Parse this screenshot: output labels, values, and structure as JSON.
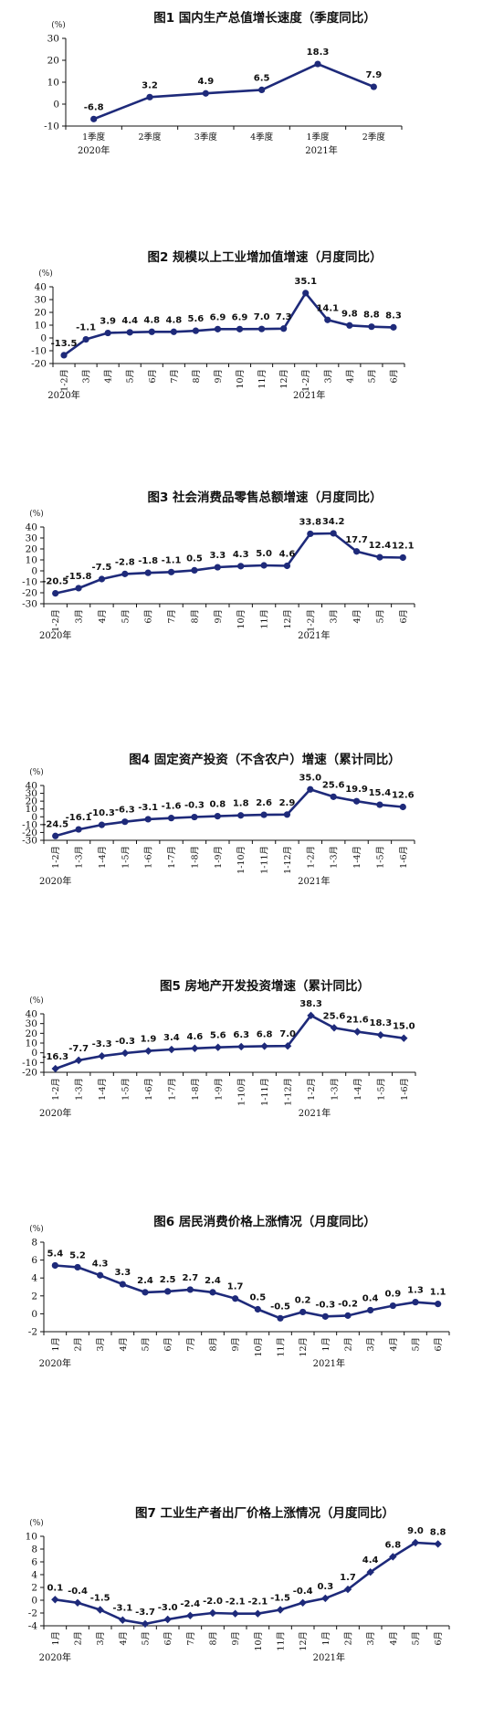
{
  "colors": {
    "series": "#1e2a7a",
    "axis": "#111111",
    "text": "#111111"
  },
  "chart_data": [
    {
      "type": "line",
      "title": "图1 国内生产总值增长速度（季度同比）",
      "unit": "(%)",
      "categories": [
        "1季度",
        "2季度",
        "3季度",
        "4季度",
        "1季度",
        "2季度"
      ],
      "year_labels": [
        "2020年",
        "2021年"
      ],
      "values": [
        -6.8,
        3.2,
        4.9,
        6.5,
        18.3,
        7.9
      ],
      "data_labels": [
        "-6.8",
        "3.2",
        "4.9",
        "6.5",
        "18.3",
        "7.9"
      ],
      "yticks": [
        "30",
        "20",
        "10",
        "0",
        "-10"
      ],
      "ylim": [
        -10,
        30
      ],
      "marker": "circle",
      "xlabel_style": "horizontal",
      "grid": false
    },
    {
      "type": "line",
      "title": "图2 规模以上工业增加值增速（月度同比）",
      "unit": "(%)",
      "categories": [
        "1-2月",
        "3月",
        "4月",
        "5月",
        "6月",
        "7月",
        "8月",
        "9月",
        "10月",
        "11月",
        "12月",
        "1-2月",
        "3月",
        "4月",
        "5月",
        "6月"
      ],
      "year_labels": [
        "2020年",
        "2021年"
      ],
      "values": [
        -13.5,
        -1.1,
        3.9,
        4.4,
        4.8,
        4.8,
        5.6,
        6.9,
        6.9,
        7.0,
        7.3,
        35.1,
        14.1,
        9.8,
        8.8,
        8.3
      ],
      "data_labels": [
        "-13.5",
        "-1.1",
        "3.9",
        "4.4",
        "4.8",
        "4.8",
        "5.6",
        "6.9",
        "6.9",
        "7.0",
        "7.3",
        "35.1",
        "14.1",
        "9.8",
        "8.8",
        "8.3"
      ],
      "yticks": [
        "40",
        "30",
        "20",
        "10",
        "0",
        "-10",
        "-20"
      ],
      "ylim": [
        -20,
        40
      ],
      "marker": "circle",
      "xlabel_style": "vertical",
      "grid": false
    },
    {
      "type": "line",
      "title": "图3 社会消费品零售总额增速（月度同比）",
      "unit": "(%)",
      "categories": [
        "1-2月",
        "3月",
        "4月",
        "5月",
        "6月",
        "7月",
        "8月",
        "9月",
        "10月",
        "11月",
        "12月",
        "1-2月",
        "3月",
        "4月",
        "5月",
        "6月"
      ],
      "year_labels": [
        "2020年",
        "2021年"
      ],
      "values": [
        -20.5,
        -15.8,
        -7.5,
        -2.8,
        -1.8,
        -1.1,
        0.5,
        3.3,
        4.3,
        5.0,
        4.6,
        33.8,
        34.2,
        17.7,
        12.4,
        12.1
      ],
      "data_labels": [
        "-20.5",
        "-15.8",
        "-7.5",
        "-2.8",
        "-1.8",
        "-1.1",
        "0.5",
        "3.3",
        "4.3",
        "5.0",
        "4.6",
        "33.8",
        "34.2",
        "17.7",
        "12.4",
        "12.1"
      ],
      "yticks": [
        "40",
        "30",
        "20",
        "10",
        "0",
        "-10",
        "-20",
        "-30"
      ],
      "ylim": [
        -30,
        40
      ],
      "marker": "circle",
      "xlabel_style": "vertical",
      "grid": false
    },
    {
      "type": "line",
      "title": "图4 固定资产投资（不含农户）增速（累计同比）",
      "unit": "(%)",
      "categories": [
        "1-2月",
        "1-3月",
        "1-4月",
        "1-5月",
        "1-6月",
        "1-7月",
        "1-8月",
        "1-9月",
        "1-10月",
        "1-11月",
        "1-12月",
        "1-2月",
        "1-3月",
        "1-4月",
        "1-5月",
        "1-6月"
      ],
      "year_labels": [
        "2020年",
        "2021年"
      ],
      "values": [
        -24.5,
        -16.1,
        -10.3,
        -6.3,
        -3.1,
        -1.6,
        -0.3,
        0.8,
        1.8,
        2.6,
        2.9,
        35.0,
        25.6,
        19.9,
        15.4,
        12.6
      ],
      "data_labels": [
        "-24.5",
        "-16.1",
        "-10.3",
        "-6.3",
        "-3.1",
        "-1.6",
        "-0.3",
        "0.8",
        "1.8",
        "2.6",
        "2.9",
        "35.0",
        "25.6",
        "19.9",
        "15.4",
        "12.6"
      ],
      "yticks": [
        "40",
        "30",
        "20",
        "10",
        "0",
        "-10",
        "-20",
        "-30"
      ],
      "ylim": [
        -30,
        40
      ],
      "marker": "circle",
      "xlabel_style": "vertical",
      "grid": false
    },
    {
      "type": "line",
      "title": "图5 房地产开发投资增速（累计同比）",
      "unit": "(%)",
      "categories": [
        "1-2月",
        "1-3月",
        "1-4月",
        "1-5月",
        "1-6月",
        "1-7月",
        "1-8月",
        "1-9月",
        "1-10月",
        "1-11月",
        "1-12月",
        "1-2月",
        "1-3月",
        "1-4月",
        "1-5月",
        "1-6月"
      ],
      "year_labels": [
        "2020年",
        "2021年"
      ],
      "values": [
        -16.3,
        -7.7,
        -3.3,
        -0.3,
        1.9,
        3.4,
        4.6,
        5.6,
        6.3,
        6.8,
        7.0,
        38.3,
        25.6,
        21.6,
        18.3,
        15.0
      ],
      "data_labels": [
        "-16.3",
        "-7.7",
        "-3.3",
        "-0.3",
        "1.9",
        "3.4",
        "4.6",
        "5.6",
        "6.3",
        "6.8",
        "7.0",
        "38.3",
        "25.6",
        "21.6",
        "18.3",
        "15.0"
      ],
      "yticks": [
        "40",
        "30",
        "20",
        "10",
        "0",
        "-10",
        "-20"
      ],
      "ylim": [
        -20,
        40
      ],
      "marker": "diamond",
      "xlabel_style": "vertical",
      "grid": false
    },
    {
      "type": "line",
      "title": "图6 居民消费价格上涨情况（月度同比）",
      "unit": "(%)",
      "categories": [
        "1月",
        "2月",
        "3月",
        "4月",
        "5月",
        "6月",
        "7月",
        "8月",
        "9月",
        "10月",
        "11月",
        "12月",
        "1月",
        "2月",
        "3月",
        "4月",
        "5月",
        "6月"
      ],
      "year_labels": [
        "2020年",
        "2021年"
      ],
      "values": [
        5.4,
        5.2,
        4.3,
        3.3,
        2.4,
        2.5,
        2.7,
        2.4,
        1.7,
        0.5,
        -0.5,
        0.2,
        -0.3,
        -0.2,
        0.4,
        0.9,
        1.3,
        1.1
      ],
      "data_labels": [
        "5.4",
        "5.2",
        "4.3",
        "3.3",
        "2.4",
        "2.5",
        "2.7",
        "2.4",
        "1.7",
        "0.5",
        "-0.5",
        "0.2",
        "-0.3",
        "-0.2",
        "0.4",
        "0.9",
        "1.3",
        "1.1"
      ],
      "yticks": [
        "8",
        "6",
        "4",
        "2",
        "0",
        "-2"
      ],
      "ylim": [
        -2,
        8
      ],
      "marker": "circle",
      "xlabel_style": "vertical",
      "grid": false
    },
    {
      "type": "line",
      "title": "图7 工业生产者出厂价格上涨情况（月度同比）",
      "unit": "(%)",
      "categories": [
        "1月",
        "2月",
        "3月",
        "4月",
        "5月",
        "6月",
        "7月",
        "8月",
        "9月",
        "10月",
        "11月",
        "12月",
        "1月",
        "2月",
        "3月",
        "4月",
        "5月",
        "6月"
      ],
      "year_labels": [
        "2020年",
        "2021年"
      ],
      "values": [
        0.1,
        -0.4,
        -1.5,
        -3.1,
        -3.7,
        -3.0,
        -2.4,
        -2.0,
        -2.1,
        -2.1,
        -1.5,
        -0.4,
        0.3,
        1.7,
        4.4,
        6.8,
        9.0,
        8.8
      ],
      "data_labels": [
        "0.1",
        "-0.4",
        "-1.5",
        "-3.1",
        "-3.7",
        "-3.0",
        "-2.4",
        "-2.0",
        "-2.1",
        "-2.1",
        "-1.5",
        "-0.4",
        "0.3",
        "1.7",
        "4.4",
        "6.8",
        "9.0",
        "8.8"
      ],
      "yticks": [
        "10",
        "8",
        "6",
        "4",
        "2",
        "0",
        "-2",
        "-4"
      ],
      "ylim": [
        -4,
        10
      ],
      "marker": "diamond",
      "xlabel_style": "vertical",
      "grid": false
    }
  ]
}
